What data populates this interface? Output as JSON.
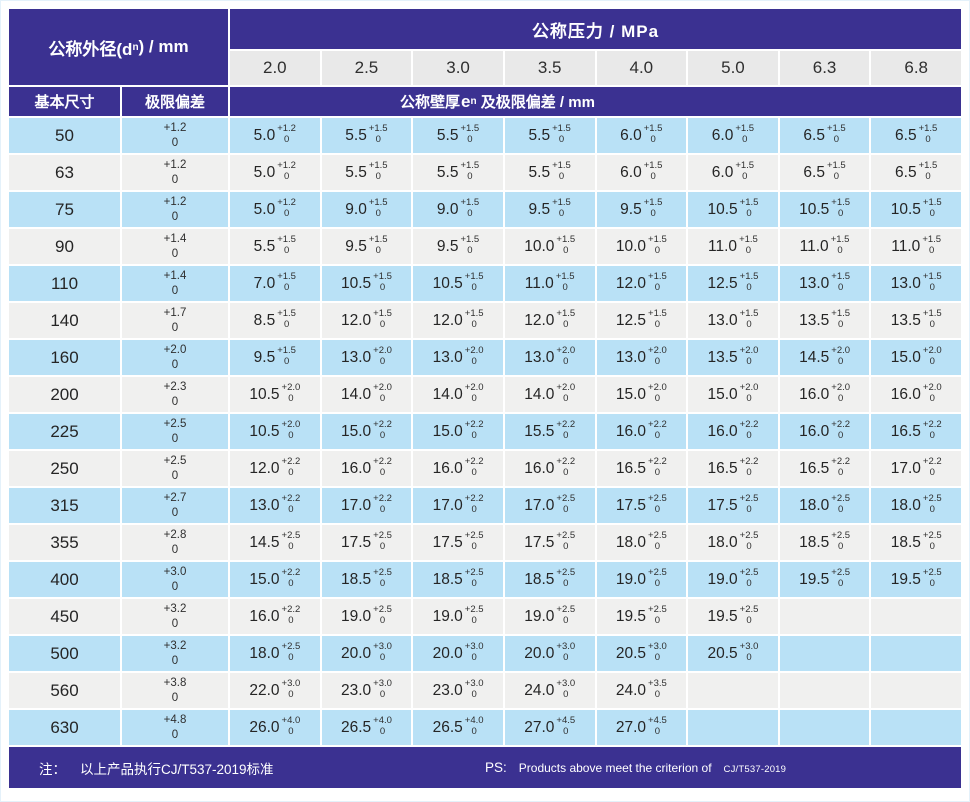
{
  "header": {
    "outer_diameter_prefix": "公称外径(d",
    "outer_diameter_sub": "n",
    "outer_diameter_suffix": ") / mm",
    "pressure_label": "公称压力 / MPa",
    "pressure_values": [
      "2.0",
      "2.5",
      "3.0",
      "3.5",
      "4.0",
      "5.0",
      "6.3",
      "6.8"
    ],
    "basic_size_label": "基本尺寸",
    "deviation_label": "极限偏差",
    "wall_prefix": "公称壁厚",
    "wall_e": "e",
    "wall_e_sub": "n",
    "wall_suffix": "及极限偏差 / mm"
  },
  "rows": [
    {
      "dn": "50",
      "dev_plus": "+1.2",
      "dev_zero": "0",
      "cells": [
        {
          "v": "5.0",
          "p": "+1.2",
          "z": "0"
        },
        {
          "v": "5.5",
          "p": "+1.5",
          "z": "0"
        },
        {
          "v": "5.5",
          "p": "+1.5",
          "z": "0"
        },
        {
          "v": "5.5",
          "p": "+1.5",
          "z": "0"
        },
        {
          "v": "6.0",
          "p": "+1.5",
          "z": "0"
        },
        {
          "v": "6.0",
          "p": "+1.5",
          "z": "0"
        },
        {
          "v": "6.5",
          "p": "+1.5",
          "z": "0"
        },
        {
          "v": "6.5",
          "p": "+1.5",
          "z": "0"
        }
      ]
    },
    {
      "dn": "63",
      "dev_plus": "+1.2",
      "dev_zero": "0",
      "cells": [
        {
          "v": "5.0",
          "p": "+1.2",
          "z": "0"
        },
        {
          "v": "5.5",
          "p": "+1.5",
          "z": "0"
        },
        {
          "v": "5.5",
          "p": "+1.5",
          "z": "0"
        },
        {
          "v": "5.5",
          "p": "+1.5",
          "z": "0"
        },
        {
          "v": "6.0",
          "p": "+1.5",
          "z": "0"
        },
        {
          "v": "6.0",
          "p": "+1.5",
          "z": "0"
        },
        {
          "v": "6.5",
          "p": "+1.5",
          "z": "0"
        },
        {
          "v": "6.5",
          "p": "+1.5",
          "z": "0"
        }
      ]
    },
    {
      "dn": "75",
      "dev_plus": "+1.2",
      "dev_zero": "0",
      "cells": [
        {
          "v": "5.0",
          "p": "+1.2",
          "z": "0"
        },
        {
          "v": "9.0",
          "p": "+1.5",
          "z": "0"
        },
        {
          "v": "9.0",
          "p": "+1.5",
          "z": "0"
        },
        {
          "v": "9.5",
          "p": "+1.5",
          "z": "0"
        },
        {
          "v": "9.5",
          "p": "+1.5",
          "z": "0"
        },
        {
          "v": "10.5",
          "p": "+1.5",
          "z": "0"
        },
        {
          "v": "10.5",
          "p": "+1.5",
          "z": "0"
        },
        {
          "v": "10.5",
          "p": "+1.5",
          "z": "0"
        }
      ]
    },
    {
      "dn": "90",
      "dev_plus": "+1.4",
      "dev_zero": "0",
      "cells": [
        {
          "v": "5.5",
          "p": "+1.5",
          "z": "0"
        },
        {
          "v": "9.5",
          "p": "+1.5",
          "z": "0"
        },
        {
          "v": "9.5",
          "p": "+1.5",
          "z": "0"
        },
        {
          "v": "10.0",
          "p": "+1.5",
          "z": "0"
        },
        {
          "v": "10.0",
          "p": "+1.5",
          "z": "0"
        },
        {
          "v": "11.0",
          "p": "+1.5",
          "z": "0"
        },
        {
          "v": "11.0",
          "p": "+1.5",
          "z": "0"
        },
        {
          "v": "11.0",
          "p": "+1.5",
          "z": "0"
        }
      ]
    },
    {
      "dn": "110",
      "dev_plus": "+1.4",
      "dev_zero": "0",
      "cells": [
        {
          "v": "7.0",
          "p": "+1.5",
          "z": "0"
        },
        {
          "v": "10.5",
          "p": "+1.5",
          "z": "0"
        },
        {
          "v": "10.5",
          "p": "+1.5",
          "z": "0"
        },
        {
          "v": "11.0",
          "p": "+1.5",
          "z": "0"
        },
        {
          "v": "12.0",
          "p": "+1.5",
          "z": "0"
        },
        {
          "v": "12.5",
          "p": "+1.5",
          "z": "0"
        },
        {
          "v": "13.0",
          "p": "+1.5",
          "z": "0"
        },
        {
          "v": "13.0",
          "p": "+1.5",
          "z": "0"
        }
      ]
    },
    {
      "dn": "140",
      "dev_plus": "+1.7",
      "dev_zero": "0",
      "cells": [
        {
          "v": "8.5",
          "p": "+1.5",
          "z": "0"
        },
        {
          "v": "12.0",
          "p": "+1.5",
          "z": "0"
        },
        {
          "v": "12.0",
          "p": "+1.5",
          "z": "0"
        },
        {
          "v": "12.0",
          "p": "+1.5",
          "z": "0"
        },
        {
          "v": "12.5",
          "p": "+1.5",
          "z": "0"
        },
        {
          "v": "13.0",
          "p": "+1.5",
          "z": "0"
        },
        {
          "v": "13.5",
          "p": "+1.5",
          "z": "0"
        },
        {
          "v": "13.5",
          "p": "+1.5",
          "z": "0"
        }
      ]
    },
    {
      "dn": "160",
      "dev_plus": "+2.0",
      "dev_zero": "0",
      "cells": [
        {
          "v": "9.5",
          "p": "+1.5",
          "z": "0"
        },
        {
          "v": "13.0",
          "p": "+2.0",
          "z": "0"
        },
        {
          "v": "13.0",
          "p": "+2.0",
          "z": "0"
        },
        {
          "v": "13.0",
          "p": "+2.0",
          "z": "0"
        },
        {
          "v": "13.0",
          "p": "+2.0",
          "z": "0"
        },
        {
          "v": "13.5",
          "p": "+2.0",
          "z": "0"
        },
        {
          "v": "14.5",
          "p": "+2.0",
          "z": "0"
        },
        {
          "v": "15.0",
          "p": "+2.0",
          "z": "0"
        }
      ]
    },
    {
      "dn": "200",
      "dev_plus": "+2.3",
      "dev_zero": "0",
      "cells": [
        {
          "v": "10.5",
          "p": "+2.0",
          "z": "0"
        },
        {
          "v": "14.0",
          "p": "+2.0",
          "z": "0"
        },
        {
          "v": "14.0",
          "p": "+2.0",
          "z": "0"
        },
        {
          "v": "14.0",
          "p": "+2.0",
          "z": "0"
        },
        {
          "v": "15.0",
          "p": "+2.0",
          "z": "0"
        },
        {
          "v": "15.0",
          "p": "+2.0",
          "z": "0"
        },
        {
          "v": "16.0",
          "p": "+2.0",
          "z": "0"
        },
        {
          "v": "16.0",
          "p": "+2.0",
          "z": "0"
        }
      ]
    },
    {
      "dn": "225",
      "dev_plus": "+2.5",
      "dev_zero": "0",
      "cells": [
        {
          "v": "10.5",
          "p": "+2.0",
          "z": "0"
        },
        {
          "v": "15.0",
          "p": "+2.2",
          "z": "0"
        },
        {
          "v": "15.0",
          "p": "+2.2",
          "z": "0"
        },
        {
          "v": "15.5",
          "p": "+2.2",
          "z": "0"
        },
        {
          "v": "16.0",
          "p": "+2.2",
          "z": "0"
        },
        {
          "v": "16.0",
          "p": "+2.2",
          "z": "0"
        },
        {
          "v": "16.0",
          "p": "+2.2",
          "z": "0"
        },
        {
          "v": "16.5",
          "p": "+2.2",
          "z": "0"
        }
      ]
    },
    {
      "dn": "250",
      "dev_plus": "+2.5",
      "dev_zero": "0",
      "cells": [
        {
          "v": "12.0",
          "p": "+2.2",
          "z": "0"
        },
        {
          "v": "16.0",
          "p": "+2.2",
          "z": "0"
        },
        {
          "v": "16.0",
          "p": "+2.2",
          "z": "0"
        },
        {
          "v": "16.0",
          "p": "+2.2",
          "z": "0"
        },
        {
          "v": "16.5",
          "p": "+2.2",
          "z": "0"
        },
        {
          "v": "16.5",
          "p": "+2.2",
          "z": "0"
        },
        {
          "v": "16.5",
          "p": "+2.2",
          "z": "0"
        },
        {
          "v": "17.0",
          "p": "+2.2",
          "z": "0"
        }
      ]
    },
    {
      "dn": "315",
      "dev_plus": "+2.7",
      "dev_zero": "0",
      "cells": [
        {
          "v": "13.0",
          "p": "+2.2",
          "z": "0"
        },
        {
          "v": "17.0",
          "p": "+2.2",
          "z": "0"
        },
        {
          "v": "17.0",
          "p": "+2.2",
          "z": "0"
        },
        {
          "v": "17.0",
          "p": "+2.5",
          "z": "0"
        },
        {
          "v": "17.5",
          "p": "+2.5",
          "z": "0"
        },
        {
          "v": "17.5",
          "p": "+2.5",
          "z": "0"
        },
        {
          "v": "18.0",
          "p": "+2.5",
          "z": "0"
        },
        {
          "v": "18.0",
          "p": "+2.5",
          "z": "0"
        }
      ]
    },
    {
      "dn": "355",
      "dev_plus": "+2.8",
      "dev_zero": "0",
      "cells": [
        {
          "v": "14.5",
          "p": "+2.5",
          "z": "0"
        },
        {
          "v": "17.5",
          "p": "+2.5",
          "z": "0"
        },
        {
          "v": "17.5",
          "p": "+2.5",
          "z": "0"
        },
        {
          "v": "17.5",
          "p": "+2.5",
          "z": "0"
        },
        {
          "v": "18.0",
          "p": "+2.5",
          "z": "0"
        },
        {
          "v": "18.0",
          "p": "+2.5",
          "z": "0"
        },
        {
          "v": "18.5",
          "p": "+2.5",
          "z": "0"
        },
        {
          "v": "18.5",
          "p": "+2.5",
          "z": "0"
        }
      ]
    },
    {
      "dn": "400",
      "dev_plus": "+3.0",
      "dev_zero": "0",
      "cells": [
        {
          "v": "15.0",
          "p": "+2.2",
          "z": "0"
        },
        {
          "v": "18.5",
          "p": "+2.5",
          "z": "0"
        },
        {
          "v": "18.5",
          "p": "+2.5",
          "z": "0"
        },
        {
          "v": "18.5",
          "p": "+2.5",
          "z": "0"
        },
        {
          "v": "19.0",
          "p": "+2.5",
          "z": "0"
        },
        {
          "v": "19.0",
          "p": "+2.5",
          "z": "0"
        },
        {
          "v": "19.5",
          "p": "+2.5",
          "z": "0"
        },
        {
          "v": "19.5",
          "p": "+2.5",
          "z": "0"
        }
      ]
    },
    {
      "dn": "450",
      "dev_plus": "+3.2",
      "dev_zero": "0",
      "cells": [
        {
          "v": "16.0",
          "p": "+2.2",
          "z": "0"
        },
        {
          "v": "19.0",
          "p": "+2.5",
          "z": "0"
        },
        {
          "v": "19.0",
          "p": "+2.5",
          "z": "0"
        },
        {
          "v": "19.0",
          "p": "+2.5",
          "z": "0"
        },
        {
          "v": "19.5",
          "p": "+2.5",
          "z": "0"
        },
        {
          "v": "19.5",
          "p": "+2.5",
          "z": "0"
        },
        {
          "v": "",
          "p": "",
          "z": ""
        },
        {
          "v": "",
          "p": "",
          "z": ""
        }
      ]
    },
    {
      "dn": "500",
      "dev_plus": "+3.2",
      "dev_zero": "0",
      "cells": [
        {
          "v": "18.0",
          "p": "+2.5",
          "z": "0"
        },
        {
          "v": "20.0",
          "p": "+3.0",
          "z": "0"
        },
        {
          "v": "20.0",
          "p": "+3.0",
          "z": "0"
        },
        {
          "v": "20.0",
          "p": "+3.0",
          "z": "0"
        },
        {
          "v": "20.5",
          "p": "+3.0",
          "z": "0"
        },
        {
          "v": "20.5",
          "p": "+3.0",
          "z": "0"
        },
        {
          "v": "",
          "p": "",
          "z": ""
        },
        {
          "v": "",
          "p": "",
          "z": ""
        }
      ]
    },
    {
      "dn": "560",
      "dev_plus": "+3.8",
      "dev_zero": "0",
      "cells": [
        {
          "v": "22.0",
          "p": "+3.0",
          "z": "0"
        },
        {
          "v": "23.0",
          "p": "+3.0",
          "z": "0"
        },
        {
          "v": "23.0",
          "p": "+3.0",
          "z": "0"
        },
        {
          "v": "24.0",
          "p": "+3.0",
          "z": "0"
        },
        {
          "v": "24.0",
          "p": "+3.5",
          "z": "0"
        },
        {
          "v": "",
          "p": "",
          "z": ""
        },
        {
          "v": "",
          "p": "",
          "z": ""
        },
        {
          "v": "",
          "p": "",
          "z": ""
        }
      ]
    },
    {
      "dn": "630",
      "dev_plus": "+4.8",
      "dev_zero": "0",
      "cells": [
        {
          "v": "26.0",
          "p": "+4.0",
          "z": "0"
        },
        {
          "v": "26.5",
          "p": "+4.0",
          "z": "0"
        },
        {
          "v": "26.5",
          "p": "+4.0",
          "z": "0"
        },
        {
          "v": "27.0",
          "p": "+4.5",
          "z": "0"
        },
        {
          "v": "27.0",
          "p": "+4.5",
          "z": "0"
        },
        {
          "v": "",
          "p": "",
          "z": ""
        },
        {
          "v": "",
          "p": "",
          "z": ""
        },
        {
          "v": "",
          "p": "",
          "z": ""
        }
      ]
    }
  ],
  "footer": {
    "note_prefix": "注：",
    "note_text": "以上产品执行CJ/T537-2019标准",
    "ps_prefix": "PS:",
    "ps_text": "Products above meet the criterion of",
    "ps_standard": "CJ/T537-2019"
  },
  "colors": {
    "header_purple": "#3b3191",
    "row_blue": "#b9e1f6",
    "row_grey": "#f0f0ef",
    "pressure_header_grey": "#e9e9e9"
  }
}
